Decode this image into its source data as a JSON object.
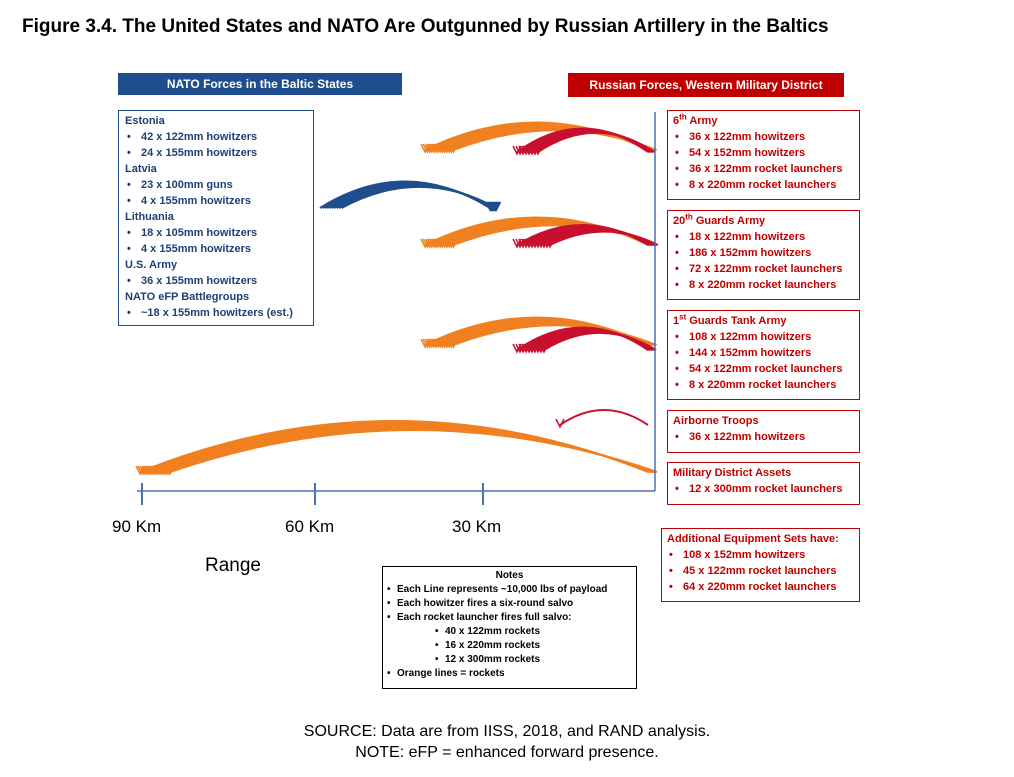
{
  "title": "Figure 3.4. The United States and NATO Are Outgunned by Russian Artillery in the Baltics",
  "nato": {
    "header": "NATO Forces in the Baltic States",
    "estonia": {
      "name": "Estonia",
      "items": [
        "42 x 122mm howitzers",
        "24 x 155mm howitzers"
      ]
    },
    "latvia": {
      "name": "Latvia",
      "items": [
        "23 x 100mm guns",
        "4 x 155mm howitzers"
      ]
    },
    "lithuania": {
      "name": "Lithuania",
      "items": [
        "18 x 105mm howitzers",
        "4 x 155mm howitzers"
      ]
    },
    "usarmy": {
      "name": "U.S. Army",
      "items": [
        "36 x 155mm howitzers"
      ]
    },
    "efp": {
      "name": "NATO eFP Battlegroups",
      "items": [
        "~18 x 155mm howitzers (est.)"
      ]
    }
  },
  "russia": {
    "header": "Russian Forces, Western Military District",
    "army6": {
      "name_num": "6",
      "name_sup": "th",
      "name_rest": " Army",
      "items": [
        "36 x 122mm howitzers",
        "54 x 152mm howitzers",
        "36 x 122mm rocket launchers",
        "8 x 220mm rocket launchers"
      ]
    },
    "guards20": {
      "name_num": "20",
      "name_sup": "th",
      "name_rest": " Guards Army",
      "items": [
        "18 x 122mm howitzers",
        "186 x 152mm howitzers",
        "72 x 122mm rocket launchers",
        "8 x 220mm rocket launchers"
      ]
    },
    "tank1": {
      "name_num": "1",
      "name_sup": "st",
      "name_rest": " Guards Tank Army",
      "items": [
        "108 x 122mm howitzers",
        "144 x 152mm howitzers",
        "54 x 122mm rocket launchers",
        "8 x 220mm rocket launchers"
      ]
    },
    "airborne": {
      "name": "Airborne Troops",
      "items": [
        "36 x 122mm howitzers"
      ]
    },
    "district": {
      "name": "Military District Assets",
      "items": [
        "12 x 300mm rocket launchers"
      ]
    },
    "additional": {
      "name": "Additional Equipment Sets have:",
      "items": [
        "108 x 152mm howitzers",
        "45 x 122mm rocket launchers",
        "64 x 220mm rocket launchers"
      ]
    }
  },
  "axis": {
    "ticks": [
      "90 Km",
      "60 Km",
      "30 Km"
    ],
    "label": "Range"
  },
  "notes": {
    "title": "Notes",
    "line1": "Each Line represents ~10,000 lbs of payload",
    "line2": "Each howitzer fires a six-round salvo",
    "line3": "Each rocket launcher fires full salvo:",
    "sub": [
      "40 x 122mm rockets",
      "16 x 220mm rockets",
      "12 x 300mm rockets"
    ],
    "line4": "Orange lines = rockets"
  },
  "source": "SOURCE: Data are from IISS, 2018, and RAND analysis.",
  "note": "NOTE: eFP = enhanced forward presence.",
  "colors": {
    "nato_blue": "#1f4e8c",
    "russia_red": "#c00000",
    "rocket_orange": "#f08020",
    "howitzer_red": "#c8102e"
  }
}
